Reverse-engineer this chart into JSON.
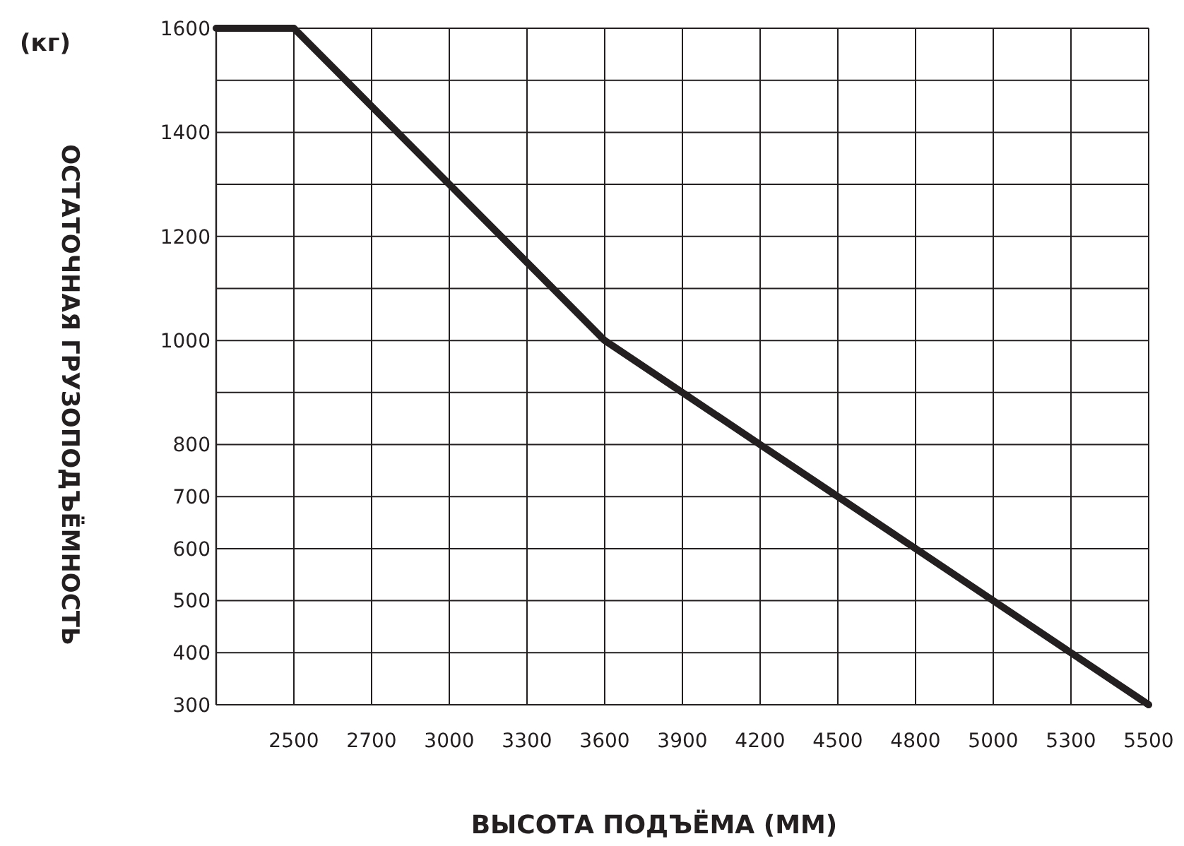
{
  "chart_data": {
    "type": "line",
    "xlabel": "ВЫСОТА ПОДЪЁМА (ММ)",
    "ylabel": "ОСТАТОЧНАЯ ГРУЗОПОДЪЁМНОСТЬ",
    "annotations": [
      "(кг)"
    ],
    "categories": [
      null,
      "2500",
      "2700",
      "3000",
      "3300",
      "3600",
      "3900",
      "4200",
      "4500",
      "4800",
      "5000",
      "5300",
      "5500"
    ],
    "series": [
      {
        "color": "#231f20",
        "values": [
          1600,
          1600,
          1450,
          1300,
          1150,
          1000,
          900,
          800,
          700,
          600,
          500,
          400,
          300
        ]
      }
    ],
    "ylim": [
      300,
      1600
    ],
    "yticks": [
      300,
      400,
      500,
      600,
      700,
      800,
      {
        "value": 900,
        "label": null
      },
      1000,
      {
        "value": 1100,
        "label": null
      },
      1200,
      {
        "value": 1300,
        "label": null
      },
      1400,
      {
        "value": 1500,
        "label": null
      },
      1600
    ],
    "grid": true,
    "marker": "none",
    "line_style": "solid"
  }
}
